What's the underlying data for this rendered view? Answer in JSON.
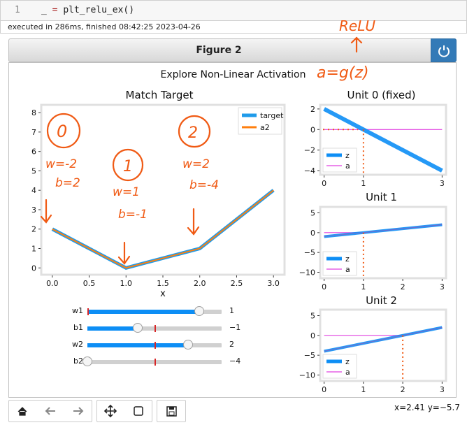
{
  "cell": {
    "line_number": "1",
    "code_var": "_",
    "code_op": " = ",
    "code_call": "plt_relu_ex()"
  },
  "exec_status": "executed in 286ms, finished 08:42:25 2023-04-26",
  "figure": {
    "title": "Figure 2",
    "power_icon": "power-icon"
  },
  "suptitle": "Explore Non-Linear Activation",
  "annotations": {
    "relu": "ReLU",
    "formula": "a=g(z)",
    "unit0_num": "0",
    "unit0_w": "w=-2",
    "unit0_b": "b=2",
    "unit1_num": "1",
    "unit1_w": "w=1",
    "unit1_b": "b=-1",
    "unit2_num": "2",
    "unit2_w": "w=2",
    "unit2_b": "b=-4"
  },
  "colors": {
    "target": "#1f9bea",
    "a2": "#ff7f0e",
    "z": "#0d8ef5",
    "a": "#e040e0",
    "ink": "#f05a14",
    "slider": "#0d8ef5"
  },
  "chart_data": [
    {
      "type": "line",
      "title": "Match Target",
      "xlabel": "x",
      "xlim": [
        -0.15,
        3.15
      ],
      "ylim": [
        -0.35,
        8.4
      ],
      "xticks": [
        0.0,
        0.5,
        1.0,
        1.5,
        2.0,
        2.5,
        3.0
      ],
      "xtick_labels": [
        "0.0",
        "0.5",
        "1.0",
        "1.5",
        "2.0",
        "2.5",
        "3.0"
      ],
      "yticks": [
        0,
        1,
        2,
        3,
        4,
        5,
        6,
        7,
        8
      ],
      "ytick_labels": [
        "0",
        "1",
        "2",
        "3",
        "4",
        "5",
        "6",
        "7",
        "8"
      ],
      "legend": "upper right",
      "x": [
        0,
        1,
        2,
        3
      ],
      "series": [
        {
          "name": "target",
          "values": [
            2,
            0,
            1,
            4
          ]
        },
        {
          "name": "a2",
          "values": [
            2,
            0,
            1,
            4
          ]
        }
      ]
    },
    {
      "type": "line",
      "title": "Unit 0 (fixed)",
      "xlim": [
        -0.1,
        3.1
      ],
      "ylim": [
        -4.4,
        2.4
      ],
      "xticks": [
        0,
        1,
        3
      ],
      "xtick_labels": [
        "0",
        "1",
        "3"
      ],
      "yticks": [
        2,
        0,
        -2,
        -4
      ],
      "ytick_labels": [
        "2",
        "0",
        "−2",
        "−4"
      ],
      "legend": "lower left",
      "x": [
        0,
        3
      ],
      "series": [
        {
          "name": "z",
          "values": [
            2,
            -4
          ]
        },
        {
          "name": "a",
          "values": [
            0,
            0
          ]
        }
      ],
      "annotations": {
        "vline_x": 1,
        "hline_y": 0,
        "hline_x_end": 1
      }
    },
    {
      "type": "line",
      "title": "Unit 1",
      "xlim": [
        -0.1,
        3.1
      ],
      "ylim": [
        -11.5,
        6.5
      ],
      "xticks": [
        0,
        1,
        2,
        3
      ],
      "xtick_labels": [
        "0",
        "1",
        "2",
        "3"
      ],
      "yticks": [
        5,
        0,
        -5,
        -10
      ],
      "ytick_labels": [
        "5",
        "0",
        "−5",
        "−10"
      ],
      "legend": "lower left",
      "x": [
        0,
        3
      ],
      "series": [
        {
          "name": "z",
          "values": [
            -1,
            2
          ]
        },
        {
          "name": "a",
          "values": [
            0,
            2
          ]
        }
      ],
      "annotations": {
        "vline_x": 1
      }
    },
    {
      "type": "line",
      "title": "Unit 2",
      "xlim": [
        -0.1,
        3.1
      ],
      "ylim": [
        -11.5,
        6.5
      ],
      "xticks": [
        0,
        1,
        2,
        3
      ],
      "xtick_labels": [
        "0",
        "1",
        "2",
        "3"
      ],
      "yticks": [
        5,
        0,
        -5,
        -10
      ],
      "ytick_labels": [
        "5",
        "0",
        "−5",
        "−10"
      ],
      "legend": "lower left",
      "x": [
        0,
        3
      ],
      "series": [
        {
          "name": "z",
          "values": [
            -4,
            2
          ]
        },
        {
          "name": "a",
          "values": [
            0,
            2
          ]
        }
      ],
      "annotations": {
        "vline_x": 2
      }
    }
  ],
  "sliders": [
    {
      "label": "w1",
      "value": 1,
      "display": "1",
      "min": -4,
      "max": 2,
      "initial": 0
    },
    {
      "label": "b1",
      "value": -1,
      "display": "−1",
      "min": -4,
      "max": 4,
      "initial": 0.5
    },
    {
      "label": "w2",
      "value": 2,
      "display": "2",
      "min": -4,
      "max": 4,
      "initial": 0.5
    },
    {
      "label": "b2",
      "value": -4,
      "display": "−4",
      "min": -4,
      "max": 4,
      "initial": 0.5
    }
  ],
  "toolbar": {
    "icons": [
      "home-icon",
      "back-arrow-icon",
      "forward-arrow-icon",
      "pan-icon",
      "zoom-rect-icon",
      "save-icon"
    ]
  },
  "status": {
    "coords": "x=2.41 y=−5.7"
  }
}
